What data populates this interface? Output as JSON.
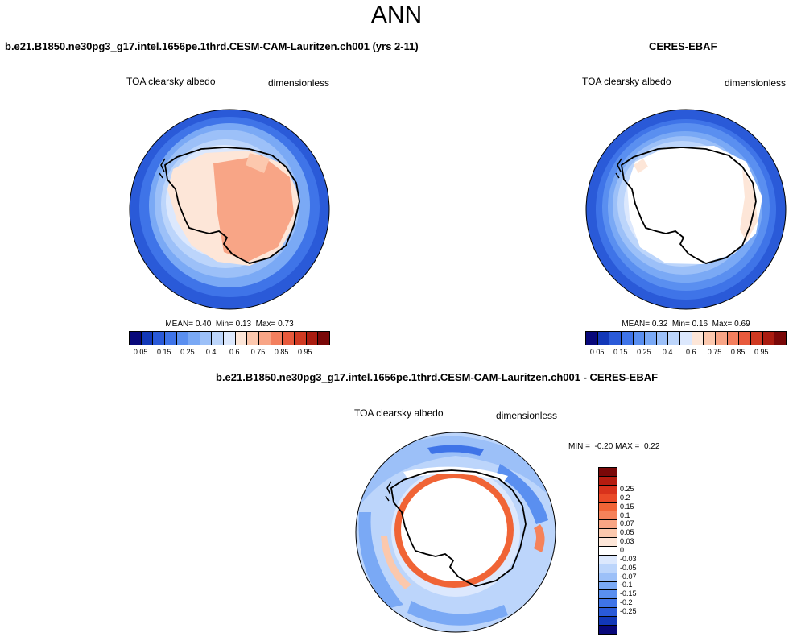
{
  "season": "ANN",
  "panel_left": {
    "case_title": "b.e21.B1850.ne30pg3_g17.intel.1656pe.1thrd.CESM-CAM-Lauritzen.ch001 (yrs 2-11)",
    "variable": "TOA clearsky albedo",
    "units": "dimensionless",
    "mean_label": "MEAN=",
    "mean": "0.40",
    "min_label": "Min=",
    "min": "0.13",
    "max_label": "Max=",
    "max": "0.73"
  },
  "panel_right": {
    "case_title": "CERES-EBAF",
    "variable": "TOA clearsky albedo",
    "units": "dimensionless",
    "mean_label": "MEAN=",
    "mean": "0.32",
    "min_label": "Min=",
    "min": "0.16",
    "max_label": "Max=",
    "max": "0.69"
  },
  "panel_diff": {
    "case_title": "b.e21.B1850.ne30pg3_g17.intel.1656pe.1thrd.CESM-CAM-Lauritzen.ch001 - CERES-EBAF",
    "variable": "TOA clearsky albedo",
    "units": "dimensionless",
    "min_label": "MIN =",
    "min": "-0.20",
    "max_label": "MAX =",
    "max": "0.22"
  },
  "abs_colorbar": {
    "colors": [
      "#08087a",
      "#1238b8",
      "#2a5ad8",
      "#3f74e8",
      "#5a8ff0",
      "#7aa9f5",
      "#9cc0f8",
      "#bcd5fb",
      "#dce8fd",
      "#fde6d8",
      "#fcc8ae",
      "#f8a586",
      "#f37f5e",
      "#e85a3c",
      "#d03a22",
      "#aa1c10",
      "#7a0808"
    ],
    "labels": [
      "0.05",
      "0.15",
      "0.25",
      "0.4",
      "0.6",
      "0.75",
      "0.85",
      "0.95"
    ]
  },
  "diff_colorbar": {
    "colors": [
      "#7a0808",
      "#b51c10",
      "#d8321c",
      "#ea4a28",
      "#f06436",
      "#f5825a",
      "#f8a584",
      "#fbc8ad",
      "#fde6d8",
      "#ffffff",
      "#dce8fd",
      "#bcd5fb",
      "#9cc0f8",
      "#7aa9f5",
      "#5a8ff0",
      "#3f74e8",
      "#2a5ad8",
      "#1238b8",
      "#08087a"
    ],
    "labels": [
      "0.25",
      "0.2",
      "0.15",
      "0.1",
      "0.07",
      "0.05",
      "0.03",
      "0",
      "-0.03",
      "-0.05",
      "-0.07",
      "-0.1",
      "-0.15",
      "-0.2",
      "-0.25"
    ]
  }
}
